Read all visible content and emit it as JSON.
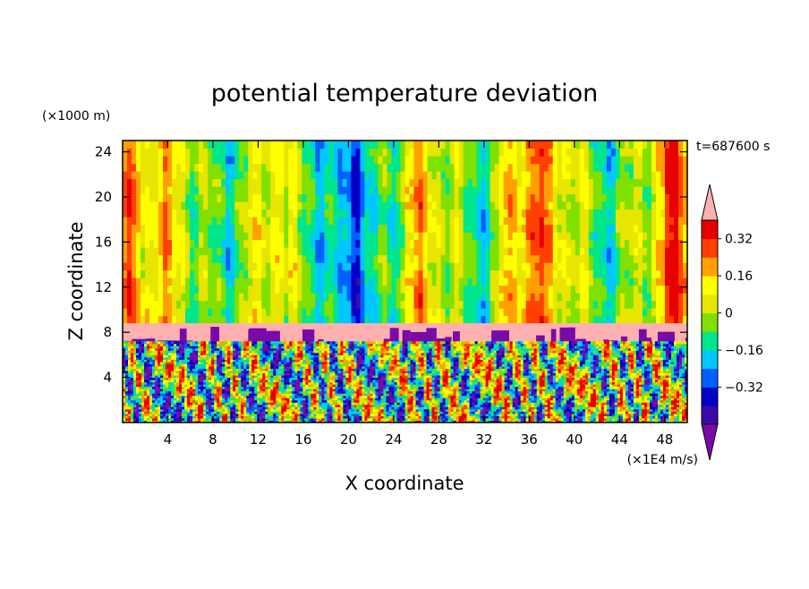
{
  "chart_data": {
    "type": "heatmap",
    "title": "potential temperature deviation",
    "xlabel": "X coordinate",
    "ylabel": "Z coordinate",
    "x_unit": "(×1E4 m/s)",
    "y_unit": "(×1000 m)",
    "time_label": "t=687600 s",
    "xlim": [
      0,
      50
    ],
    "ylim": [
      0,
      25
    ],
    "x_ticks": [
      4,
      8,
      12,
      16,
      20,
      24,
      28,
      32,
      36,
      40,
      44,
      48
    ],
    "y_ticks": [
      4,
      8,
      12,
      16,
      20,
      24
    ],
    "colorbar": {
      "levels": [
        -0.48,
        -0.4,
        -0.32,
        -0.24,
        -0.16,
        -0.08,
        0,
        0.08,
        0.16,
        0.24,
        0.32,
        0.4
      ],
      "labeled_levels": [
        -0.32,
        -0.16,
        0,
        0.16,
        0.32
      ],
      "tick_labels": [
        "0.32",
        "0.16",
        "0",
        "−0.16",
        "−0.32"
      ],
      "colors": [
        "#7a0aa8",
        "#3a0aa8",
        "#0000c8",
        "#0060ff",
        "#00c8ff",
        "#00e68c",
        "#80e000",
        "#e6e600",
        "#ffff00",
        "#ffa000",
        "#ff4000",
        "#e60000",
        "#ffb0b0"
      ],
      "extend": "both"
    },
    "layers": [
      {
        "z_range": [
          0,
          7.2
        ],
        "description": "turbulent mixed layer",
        "values": "mixed -0.4 to 0.4"
      },
      {
        "z_range": [
          7.2,
          8.8
        ],
        "description": "inversion band",
        "values": "≈0.48 (pink) with ≈-0.48 (purple) patches"
      },
      {
        "z_range": [
          8.8,
          25
        ],
        "description": "stable free atmosphere",
        "values": "mostly -0.16 to 0.24 columns"
      }
    ]
  }
}
